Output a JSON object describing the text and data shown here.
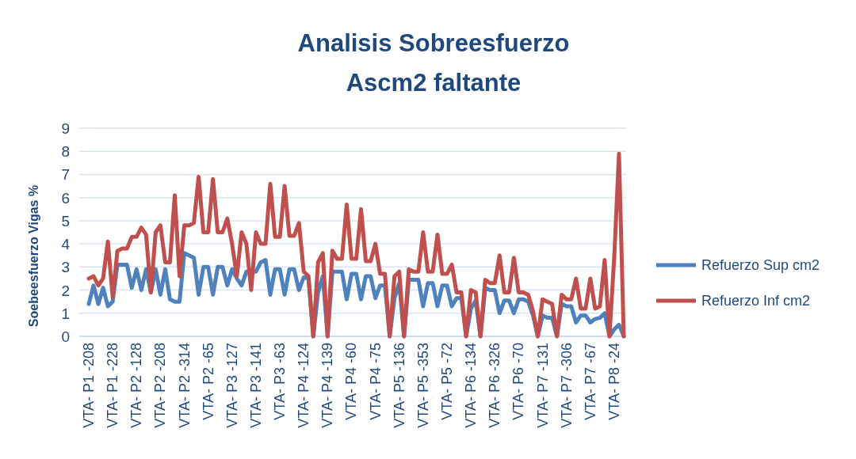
{
  "chart_data": {
    "type": "line",
    "title": "Analisis Sobreesfuerzo\nAscm2 faltante",
    "ylabel": "Soebeesfuerzo Vigas %",
    "categories": [
      "VTA- P1 -208",
      null,
      null,
      null,
      null,
      "VTA- P1 -228",
      null,
      null,
      null,
      null,
      "VTA- P2 -128",
      null,
      null,
      null,
      null,
      "VTA- P2 -208",
      null,
      null,
      null,
      null,
      "VTA- P2 -314",
      null,
      null,
      null,
      null,
      "VTA- P2 -65",
      null,
      null,
      null,
      null,
      "VTA- P3 -127",
      null,
      null,
      null,
      null,
      "VTA- P3 -141",
      null,
      null,
      null,
      null,
      "VTA- P3 -63",
      null,
      null,
      null,
      null,
      "VTA- P4 -124",
      null,
      null,
      null,
      null,
      "VTA- P4 -139",
      null,
      null,
      null,
      null,
      "VTA- P4 -60",
      null,
      null,
      null,
      null,
      "VTA- P4 -75",
      null,
      null,
      null,
      null,
      "VTA- P5 -136",
      null,
      null,
      null,
      null,
      "VTA- P5 -353",
      null,
      null,
      null,
      null,
      "VTA- P5 -72",
      null,
      null,
      null,
      null,
      "VTA- P6 -134",
      null,
      null,
      null,
      null,
      "VTA- P6 -326",
      null,
      null,
      null,
      null,
      "VTA- P6 -70",
      null,
      null,
      null,
      null,
      "VTA- P7 -131",
      null,
      null,
      null,
      null,
      "VTA- P7 -306",
      null,
      null,
      null,
      null,
      "VTA- P7 -67",
      null,
      null,
      null,
      null,
      "VTA- P8 -24",
      null,
      null
    ],
    "series": [
      {
        "name": "Refuerzo Sup cm2",
        "color": "#4f81bd",
        "values": [
          1.4,
          2.2,
          1.4,
          2.1,
          1.3,
          1.5,
          3.1,
          3.1,
          3.1,
          2.1,
          2.9,
          2.0,
          2.9,
          1.9,
          2.9,
          1.8,
          2.9,
          1.6,
          1.5,
          1.5,
          3.6,
          3.5,
          3.4,
          1.8,
          3.0,
          3.0,
          1.8,
          3.0,
          3.0,
          2.2,
          2.9,
          2.5,
          2.2,
          2.8,
          2.8,
          2.8,
          3.2,
          3.3,
          1.8,
          2.9,
          2.9,
          1.8,
          2.9,
          2.9,
          2.0,
          2.55,
          2.5,
          0,
          1.9,
          2.6,
          0,
          2.8,
          2.8,
          2.8,
          1.6,
          2.7,
          2.7,
          1.6,
          2.6,
          2.6,
          1.65,
          2.2,
          2.2,
          0,
          1.65,
          2.3,
          0,
          2.45,
          2.45,
          2.45,
          1.3,
          2.3,
          2.3,
          1.3,
          2.2,
          2.2,
          1.3,
          1.65,
          1.65,
          0,
          1.2,
          1.55,
          0,
          2.1,
          2.0,
          2.0,
          1.0,
          1.55,
          1.55,
          1.0,
          1.6,
          1.6,
          1.5,
          0.9,
          0,
          0.9,
          0.8,
          0.8,
          0,
          1.4,
          1.3,
          1.3,
          0.6,
          0.9,
          0.9,
          0.6,
          0.75,
          0.8,
          1.0,
          0,
          0.3,
          0.5,
          0
        ]
      },
      {
        "name": "Refuerzo Inf cm2",
        "color": "#c0504d",
        "values": [
          2.5,
          2.6,
          2.2,
          2.5,
          4.1,
          1.7,
          3.7,
          3.8,
          3.8,
          4.3,
          4.3,
          4.7,
          4.4,
          1.9,
          4.5,
          4.8,
          3.2,
          3.2,
          6.1,
          2.6,
          4.8,
          4.8,
          4.9,
          6.9,
          4.5,
          4.5,
          6.8,
          4.5,
          4.5,
          5.1,
          4.0,
          2.6,
          4.5,
          4.0,
          2.0,
          4.5,
          4.0,
          4.0,
          6.6,
          4.3,
          4.3,
          6.5,
          4.35,
          4.35,
          4.9,
          2.8,
          2.6,
          0,
          3.2,
          3.6,
          0,
          3.7,
          3.35,
          3.35,
          5.7,
          3.35,
          3.35,
          5.5,
          3.25,
          3.25,
          4.0,
          2.7,
          2.7,
          0,
          2.6,
          2.8,
          0,
          2.9,
          2.8,
          2.8,
          4.5,
          2.8,
          2.8,
          4.4,
          2.7,
          2.7,
          3.1,
          1.9,
          1.9,
          0,
          2.0,
          1.9,
          0,
          2.45,
          2.3,
          2.3,
          3.5,
          1.9,
          1.9,
          3.4,
          1.9,
          1.9,
          1.8,
          1.1,
          0,
          1.6,
          1.5,
          1.4,
          0,
          1.8,
          1.6,
          1.6,
          2.5,
          1.2,
          1.2,
          2.5,
          1.2,
          1.3,
          3.3,
          0,
          3.4,
          7.9,
          0
        ]
      }
    ],
    "ylim": [
      0,
      9
    ],
    "yticks": [
      0,
      1,
      2,
      3,
      4,
      5,
      6,
      7,
      8,
      9
    ],
    "grid": "y",
    "legend": "right"
  }
}
